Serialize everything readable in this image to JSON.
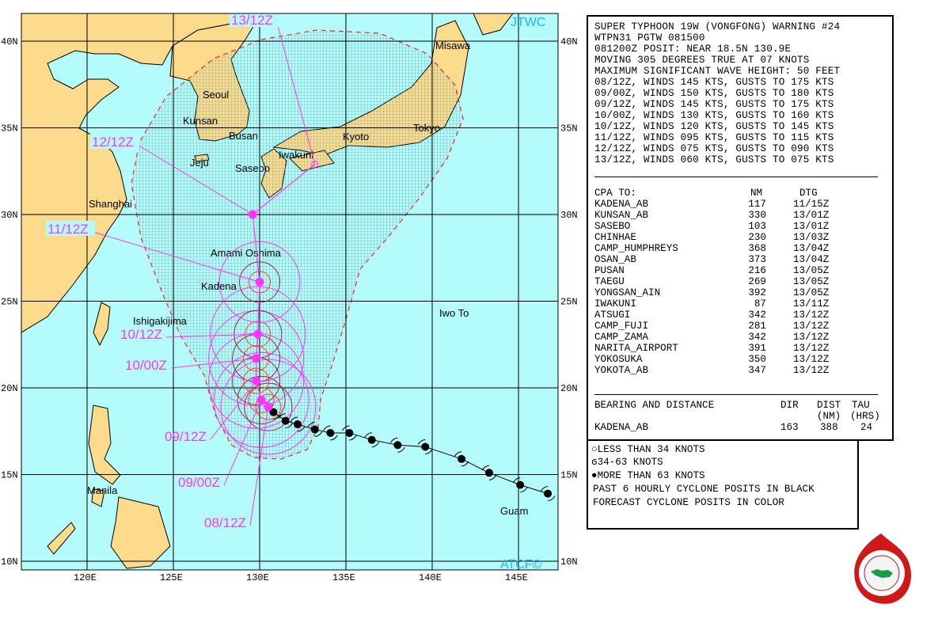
{
  "map": {
    "corner_top": "JTWC",
    "corner_bottom": "ATCF©",
    "lat_labels": [
      "40N",
      "35N",
      "30N",
      "25N",
      "20N",
      "15N",
      "10N"
    ],
    "lon_labels": [
      "120E",
      "125E",
      "130E",
      "135E",
      "140E",
      "145E"
    ],
    "colors": {
      "land": "#fcdc8c",
      "sea": "#b4fcfc",
      "forecast": "#ff33ff",
      "danger_edge": "#ff2020",
      "wind34": "#ff33ff",
      "wind50": "#aa2040",
      "wind64": "#ff4020"
    },
    "places": [
      "Misawa",
      "Seoul",
      "Kunsan",
      "Busan",
      "Tokyo",
      "Kyoto",
      "Iwakuni",
      "Jeju",
      "Sasebo",
      "Shanghai",
      "Amami Oshima",
      "Kadena",
      "Ishigakijima",
      "Iwo To",
      "Manila",
      "Guam"
    ],
    "past_track": [
      {
        "lat": 18.6,
        "lon": 130.8
      },
      {
        "lat": 18.1,
        "lon": 131.5
      },
      {
        "lat": 17.9,
        "lon": 132.2
      },
      {
        "lat": 17.6,
        "lon": 133.2
      },
      {
        "lat": 17.4,
        "lon": 134.1
      },
      {
        "lat": 17.4,
        "lon": 135.2
      },
      {
        "lat": 17.0,
        "lon": 136.5
      },
      {
        "lat": 16.7,
        "lon": 138.0
      },
      {
        "lat": 16.6,
        "lon": 139.6
      },
      {
        "lat": 15.9,
        "lon": 141.7
      },
      {
        "lat": 15.1,
        "lon": 143.3
      },
      {
        "lat": 14.4,
        "lon": 145.1
      },
      {
        "lat": 13.9,
        "lon": 146.7
      }
    ],
    "forecast_track": [
      {
        "label": "08/12Z",
        "lat": 18.9,
        "lon": 130.5
      },
      {
        "label": "09/00Z",
        "lat": 19.3,
        "lon": 130.1
      },
      {
        "label": "09/12Z",
        "lat": 20.4,
        "lon": 129.8
      },
      {
        "label": "10/00Z",
        "lat": 21.7,
        "lon": 129.8
      },
      {
        "label": "10/12Z",
        "lat": 23.1,
        "lon": 129.9
      },
      {
        "label": "11/12Z",
        "lat": 26.1,
        "lon": 130.0
      },
      {
        "label": "12/12Z",
        "lat": 30.0,
        "lon": 129.6
      },
      {
        "label": "13/12Z",
        "lat": 32.9,
        "lon": 133.2
      }
    ]
  },
  "warning": {
    "lines": [
      "SUPER TYPHOON 19W (VONGFONG) WARNING #24",
      "WTPN31 PGTW 081500",
      "081200Z POSIT: NEAR 18.5N 130.9E",
      "MOVING 305 DEGREES TRUE AT 07 KNOTS",
      "MAXIMUM SIGNIFICANT WAVE HEIGHT: 50 FEET",
      "08/12Z, WINDS 145 KTS, GUSTS TO 175 KTS",
      "09/00Z, WINDS 150 KTS, GUSTS TO 180 KTS",
      "09/12Z, WINDS 145 KTS, GUSTS TO 175 KTS",
      "10/00Z, WINDS 130 KTS, GUSTS TO 160 KTS",
      "10/12Z, WINDS 120 KTS, GUSTS TO 145 KTS",
      "11/12Z, WINDS 095 KTS, GUSTS TO 115 KTS",
      "12/12Z, WINDS 075 KTS, GUSTS TO 090 KTS",
      "13/12Z, WINDS 060 KTS, GUSTS TO 075 KTS"
    ],
    "cpa": {
      "headers": [
        "CPA TO:",
        "NM",
        "DTG"
      ],
      "rows": [
        [
          "KADENA_AB",
          "117",
          "11/15Z"
        ],
        [
          "KUNSAN_AB",
          "330",
          "13/01Z"
        ],
        [
          "SASEBO",
          "103",
          "13/01Z"
        ],
        [
          "CHINHAE",
          "230",
          "13/03Z"
        ],
        [
          "CAMP_HUMPHREYS",
          "368",
          "13/04Z"
        ],
        [
          "OSAN_AB",
          "373",
          "13/04Z"
        ],
        [
          "PUSAN",
          "216",
          "13/05Z"
        ],
        [
          "TAEGU",
          "269",
          "13/05Z"
        ],
        [
          "YONGSAN_AIN",
          "392",
          "13/05Z"
        ],
        [
          "IWAKUNI",
          "87",
          "13/11Z"
        ],
        [
          "ATSUGI",
          "342",
          "13/12Z"
        ],
        [
          "CAMP_FUJI",
          "281",
          "13/12Z"
        ],
        [
          "CAMP_ZAMA",
          "342",
          "13/12Z"
        ],
        [
          "NARITA_AIRPORT",
          "391",
          "13/12Z"
        ],
        [
          "YOKOSUKA",
          "350",
          "13/12Z"
        ],
        [
          "YOKOTA_AB",
          "347",
          "13/12Z"
        ]
      ]
    },
    "bearing": {
      "title": "BEARING AND DISTANCE",
      "h_dir": "DIR",
      "h_dist": "DIST",
      "h_dist_unit": "(NM)",
      "h_tau": "TAU",
      "h_tau_unit": "(HRS)",
      "site": "KADENA_AB",
      "dir": "163",
      "dist": "388",
      "tau": "24"
    }
  },
  "legend": {
    "items": [
      {
        "icon": "open-circle",
        "text": "LESS THAN 34 KNOTS"
      },
      {
        "icon": "open-cyclone",
        "text": "34-63 KNOTS"
      },
      {
        "icon": "filled-cyclone",
        "text": "MORE THAN 63 KNOTS"
      }
    ],
    "note1": "PAST 6 HOURLY CYCLONE POSITS IN BLACK",
    "note2": "FORECAST CYCLONE POSITS IN COLOR"
  },
  "logo": {
    "text": "JOINT TYPHOON WARNING CENTER · PEARL HARBOR HAWAII"
  }
}
